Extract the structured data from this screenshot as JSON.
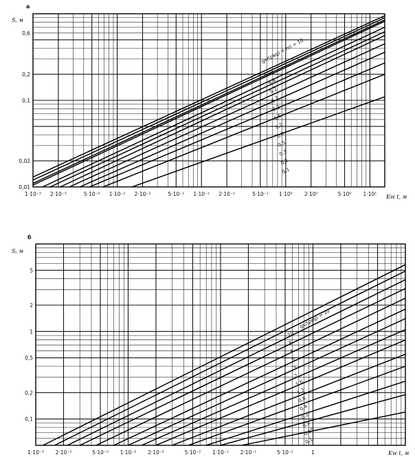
{
  "chart_data": [
    {
      "panel_label": "а",
      "type": "line",
      "scale": "log-log",
      "ylabel": "S, м",
      "xlabel": "Kw t, м",
      "xlim": [
        0.001,
        15
      ],
      "ylim": [
        0.01,
        1.0
      ],
      "x_ticks": [
        {
          "value": 0.001,
          "label": "1·10⁻³"
        },
        {
          "value": 0.002,
          "label": "2·10⁻³"
        },
        {
          "value": 0.005,
          "label": "5·10⁻³"
        },
        {
          "value": 0.01,
          "label": "1·10⁻²"
        },
        {
          "value": 0.02,
          "label": "2·10⁻²"
        },
        {
          "value": 0.05,
          "label": "5·10⁻²"
        },
        {
          "value": 0.1,
          "label": "1·10⁻¹"
        },
        {
          "value": 0.2,
          "label": "2·10⁻¹"
        },
        {
          "value": 0.5,
          "label": "5·10⁻¹"
        },
        {
          "value": 1,
          "label": "1·10⁰"
        },
        {
          "value": 2,
          "label": "2·10⁰"
        },
        {
          "value": 5,
          "label": "5·10⁰"
        },
        {
          "value": 10,
          "label": "1·10¹"
        }
      ],
      "y_ticks": [
        {
          "value": 0.01,
          "label": "0,01"
        },
        {
          "value": 0.02,
          "label": "0,02"
        },
        {
          "value": 0.1,
          "label": "0,1"
        },
        {
          "value": 0.2,
          "label": "0,2"
        },
        {
          "value": 0.6,
          "label": "0,6"
        }
      ],
      "legend_text": "gк/(ρвg) + hп = 10",
      "curve_labels": [
        "10",
        "6,8",
        "5,2",
        "4,2",
        "2,2",
        "1,6",
        "1,2",
        "0,8",
        "0,5",
        "0,3",
        "0,2",
        "0,1"
      ],
      "series": [
        {
          "name": "10",
          "x": [
            0.001,
            15
          ],
          "y": [
            0.013,
            0.95
          ]
        },
        {
          "name": "6,8",
          "x": [
            0.001,
            15
          ],
          "y": [
            0.012,
            0.9
          ]
        },
        {
          "name": "5,2",
          "x": [
            0.001,
            15
          ],
          "y": [
            0.011,
            0.85
          ]
        },
        {
          "name": "4,2",
          "x": [
            0.001,
            15
          ],
          "y": [
            0.0105,
            0.82
          ]
        },
        {
          "name": "2,2",
          "x": [
            0.0013,
            15
          ],
          "y": [
            0.01,
            0.7
          ]
        },
        {
          "name": "1,6",
          "x": [
            0.0016,
            15
          ],
          "y": [
            0.01,
            0.62
          ]
        },
        {
          "name": "1,2",
          "x": [
            0.0021,
            15
          ],
          "y": [
            0.01,
            0.56
          ]
        },
        {
          "name": "0,8",
          "x": [
            0.0027,
            15
          ],
          "y": [
            0.01,
            0.45
          ]
        },
        {
          "name": "0,5",
          "x": [
            0.0036,
            15
          ],
          "y": [
            0.01,
            0.36
          ]
        },
        {
          "name": "0,3",
          "x": [
            0.0047,
            15
          ],
          "y": [
            0.01,
            0.27
          ]
        },
        {
          "name": "0,2",
          "x": [
            0.0068,
            15
          ],
          "y": [
            0.01,
            0.2
          ]
        },
        {
          "name": "0,1",
          "x": [
            0.015,
            15
          ],
          "y": [
            0.01,
            0.11
          ]
        }
      ]
    },
    {
      "panel_label": "б",
      "type": "line",
      "scale": "log-log",
      "ylabel": "S, м",
      "xlabel": "Kw t, м",
      "xlim": [
        0.001,
        10
      ],
      "ylim": [
        0.05,
        10
      ],
      "x_ticks": [
        {
          "value": 0.001,
          "label": "1·10⁻³"
        },
        {
          "value": 0.002,
          "label": "2·10⁻³"
        },
        {
          "value": 0.005,
          "label": "5·10⁻³"
        },
        {
          "value": 0.01,
          "label": "1·10⁻²"
        },
        {
          "value": 0.02,
          "label": "2·10⁻²"
        },
        {
          "value": 0.05,
          "label": "5·10⁻²"
        },
        {
          "value": 0.1,
          "label": "1·10⁻¹"
        },
        {
          "value": 0.2,
          "label": "2·10⁻¹"
        },
        {
          "value": 0.5,
          "label": "5·10⁻¹"
        },
        {
          "value": 1,
          "label": "1"
        }
      ],
      "y_ticks": [
        {
          "value": 0.1,
          "label": "0,1"
        },
        {
          "value": 0.2,
          "label": "0,2"
        },
        {
          "value": 0.5,
          "label": "0,5"
        },
        {
          "value": 1,
          "label": "1"
        },
        {
          "value": 2,
          "label": "2"
        },
        {
          "value": 5,
          "label": "5"
        }
      ],
      "legend_text": "gк/(ρвg) = 10",
      "curve_labels": [
        "10",
        "8",
        "6",
        "5",
        "3",
        "2",
        "1,6",
        "1,2",
        "0,8",
        "0,4",
        "0,3",
        "0,2",
        "0,15",
        "0,1"
      ],
      "series": [
        {
          "name": "10",
          "x": [
            0.0012,
            10
          ],
          "y": [
            0.05,
            5.8
          ]
        },
        {
          "name": "8",
          "x": [
            0.0016,
            10
          ],
          "y": [
            0.05,
            4.9
          ]
        },
        {
          "name": "6",
          "x": [
            0.0022,
            10
          ],
          "y": [
            0.05,
            3.9
          ]
        },
        {
          "name": "5",
          "x": [
            0.003,
            10
          ],
          "y": [
            0.05,
            3.1
          ]
        },
        {
          "name": "3",
          "x": [
            0.0045,
            10
          ],
          "y": [
            0.05,
            2.4
          ]
        },
        {
          "name": "2",
          "x": [
            0.007,
            10
          ],
          "y": [
            0.05,
            1.8
          ]
        },
        {
          "name": "1,6",
          "x": [
            0.01,
            10
          ],
          "y": [
            0.05,
            1.4
          ]
        },
        {
          "name": "1,2",
          "x": [
            0.014,
            10
          ],
          "y": [
            0.05,
            1.05
          ]
        },
        {
          "name": "0,8",
          "x": [
            0.02,
            10
          ],
          "y": [
            0.05,
            0.8
          ]
        },
        {
          "name": "0,4",
          "x": [
            0.03,
            10
          ],
          "y": [
            0.05,
            0.55
          ]
        },
        {
          "name": "0,3",
          "x": [
            0.045,
            10
          ],
          "y": [
            0.05,
            0.4
          ]
        },
        {
          "name": "0,2",
          "x": [
            0.07,
            10
          ],
          "y": [
            0.05,
            0.27
          ]
        },
        {
          "name": "0,15",
          "x": [
            0.1,
            10
          ],
          "y": [
            0.05,
            0.19
          ]
        },
        {
          "name": "0,1",
          "x": [
            0.17,
            10
          ],
          "y": [
            0.05,
            0.12
          ]
        }
      ]
    }
  ]
}
